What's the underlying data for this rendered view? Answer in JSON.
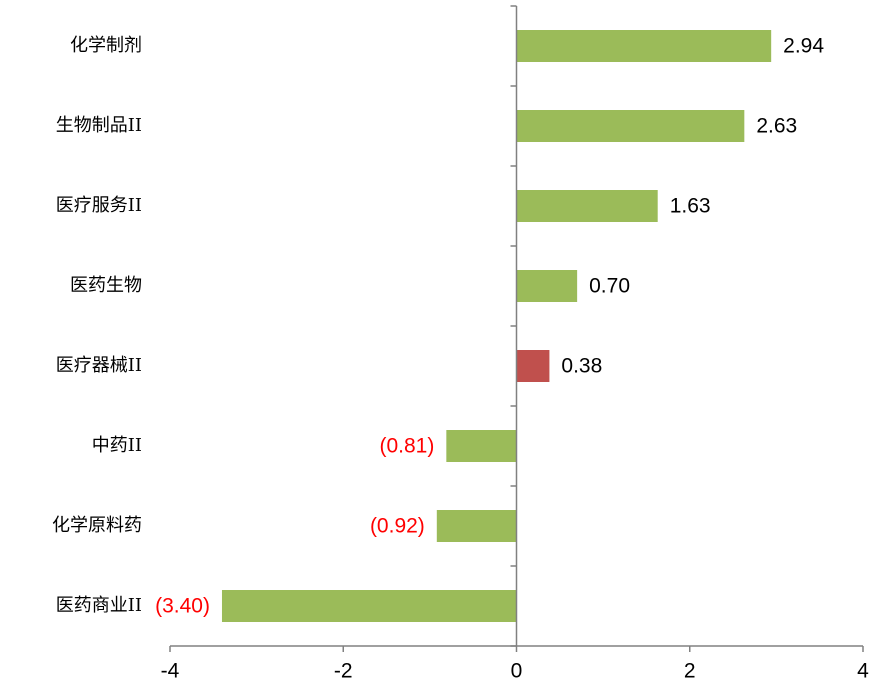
{
  "chart_data": {
    "type": "hbar",
    "categories": [
      "化学制剂",
      "生物制品II",
      "医疗服务II",
      "医药生物",
      "医疗器械II",
      "中药II",
      "化学原料药",
      "医药商业II"
    ],
    "values": [
      2.94,
      2.63,
      1.63,
      0.7,
      0.38,
      -0.81,
      -0.92,
      -3.4
    ],
    "value_labels": [
      "2.94",
      "2.63",
      "1.63",
      "0.70",
      "0.38",
      "(0.81)",
      "(0.92)",
      "(3.40)"
    ],
    "colors": [
      "#9bbb59",
      "#9bbb59",
      "#9bbb59",
      "#9bbb59",
      "#c0504d",
      "#9bbb59",
      "#9bbb59",
      "#9bbb59"
    ],
    "xlim": [
      -4,
      4
    ],
    "xticks": [
      -4,
      -2,
      0,
      2,
      4
    ],
    "grid": false
  }
}
